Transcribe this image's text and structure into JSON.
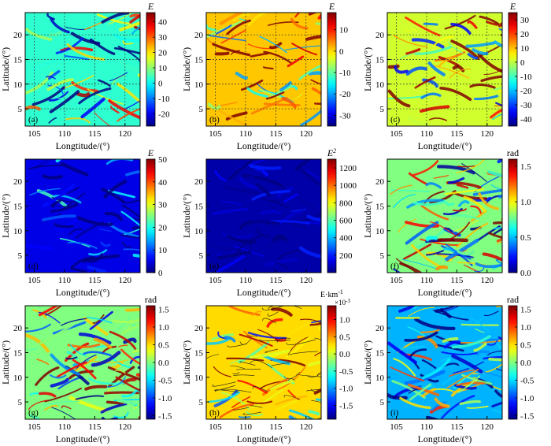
{
  "figure": {
    "x_tick_labels": [
      "105",
      "110",
      "115",
      "120"
    ],
    "y_tick_labels": [
      "5",
      "10",
      "15",
      "20"
    ],
    "xlabel": "Longtitude/(°)",
    "ylabel": "Latitude/(°)"
  },
  "chart_data": [
    {
      "type": "heatmap",
      "panel_label": "(a)",
      "colorbar_title": "E",
      "colorbar_title_sup": "",
      "colorbar_title_sub": "",
      "colorbar_ticks": [
        "40",
        "30",
        "20",
        "10",
        "0",
        "-10",
        "-20"
      ],
      "clim": [
        -28,
        46
      ],
      "xlim": [
        103.5,
        122.5
      ],
      "ylim": [
        1.5,
        24.5
      ],
      "grid": true,
      "background_level": 0.42,
      "contours": false
    },
    {
      "type": "heatmap",
      "panel_label": "(b)",
      "colorbar_title": "E",
      "colorbar_title_sup": "",
      "colorbar_title_sub": "",
      "colorbar_ticks": [
        "10",
        "0",
        "-10",
        "-20",
        "-30"
      ],
      "clim": [
        -35,
        18
      ],
      "xlim": [
        103.5,
        122.5
      ],
      "ylim": [
        1.5,
        24.5
      ],
      "grid": true,
      "background_level": 0.68,
      "contours": false
    },
    {
      "type": "heatmap",
      "panel_label": "(c)",
      "colorbar_title": "E",
      "colorbar_title_sup": "",
      "colorbar_title_sub": "",
      "colorbar_ticks": [
        "30",
        "20",
        "10",
        "0",
        "-10",
        "-20",
        "-30",
        "-40"
      ],
      "clim": [
        -45,
        35
      ],
      "xlim": [
        103.5,
        122.5
      ],
      "ylim": [
        1.5,
        24.5
      ],
      "grid": true,
      "background_level": 0.58,
      "contours": false
    },
    {
      "type": "heatmap",
      "panel_label": "(d)",
      "colorbar_title": "E",
      "colorbar_title_sup": "",
      "colorbar_title_sub": "",
      "colorbar_ticks": [
        "50",
        "40",
        "30",
        "20",
        "10",
        "0"
      ],
      "clim": [
        0,
        50
      ],
      "xlim": [
        103.5,
        122.5
      ],
      "ylim": [
        1.5,
        24.5
      ],
      "grid": false,
      "background_level": 0.1,
      "contours": false
    },
    {
      "type": "heatmap",
      "panel_label": "(e)",
      "colorbar_title": "E",
      "colorbar_title_sup": "2",
      "colorbar_title_sub": "",
      "colorbar_ticks": [
        "1200",
        "1000",
        "800",
        "600",
        "400",
        "200"
      ],
      "clim": [
        0,
        1300
      ],
      "xlim": [
        103.5,
        122.5
      ],
      "ylim": [
        1.5,
        24.5
      ],
      "grid": false,
      "background_level": 0.04,
      "contours": false
    },
    {
      "type": "heatmap",
      "panel_label": "(f)",
      "colorbar_title": "rad",
      "colorbar_title_sup": "",
      "colorbar_title_sub": "",
      "colorbar_ticks": [
        "1.5",
        "1.0",
        "0.5",
        "0.0"
      ],
      "clim": [
        0,
        1.6
      ],
      "xlim": [
        103.5,
        122.5
      ],
      "ylim": [
        1.5,
        24.5
      ],
      "grid": false,
      "background_level": 0.5,
      "contours": false
    },
    {
      "type": "heatmap",
      "panel_label": "(g)",
      "colorbar_title": "rad",
      "colorbar_title_sup": "",
      "colorbar_title_sub": "",
      "colorbar_ticks": [
        "1.5",
        "1.0",
        "0.5",
        "0.0",
        "-0.5",
        "-1.0",
        "-1.5"
      ],
      "clim": [
        -1.6,
        1.6
      ],
      "xlim": [
        103.5,
        122.5
      ],
      "ylim": [
        1.5,
        24.5
      ],
      "grid": false,
      "background_level": 0.5,
      "contours": false
    },
    {
      "type": "heatmap",
      "panel_label": "(h)",
      "colorbar_title": "E·km",
      "colorbar_title_sup": "-1",
      "colorbar_title_sub": "×10",
      "colorbar_title_sub_sup": "-3",
      "colorbar_ticks": [
        "1.0",
        "0.5",
        "0.0",
        "-0.5",
        "-1.0",
        "-1.5"
      ],
      "clim": [
        -1.9,
        1.4
      ],
      "xlim": [
        103.5,
        122.5
      ],
      "ylim": [
        1.5,
        24.5
      ],
      "grid": false,
      "background_level": 0.66,
      "contours": true
    },
    {
      "type": "heatmap",
      "panel_label": "(i)",
      "colorbar_title": "rad",
      "colorbar_title_sup": "",
      "colorbar_title_sub": "",
      "colorbar_ticks": [
        "1.5",
        "1.0",
        "0.5",
        "0.0",
        "-0.5",
        "-1.0",
        "-1.5"
      ],
      "clim": [
        -1.6,
        1.6
      ],
      "xlim": [
        103.5,
        122.5
      ],
      "ylim": [
        1.5,
        24.5
      ],
      "grid": false,
      "background_level": 0.3,
      "contours": false
    }
  ]
}
